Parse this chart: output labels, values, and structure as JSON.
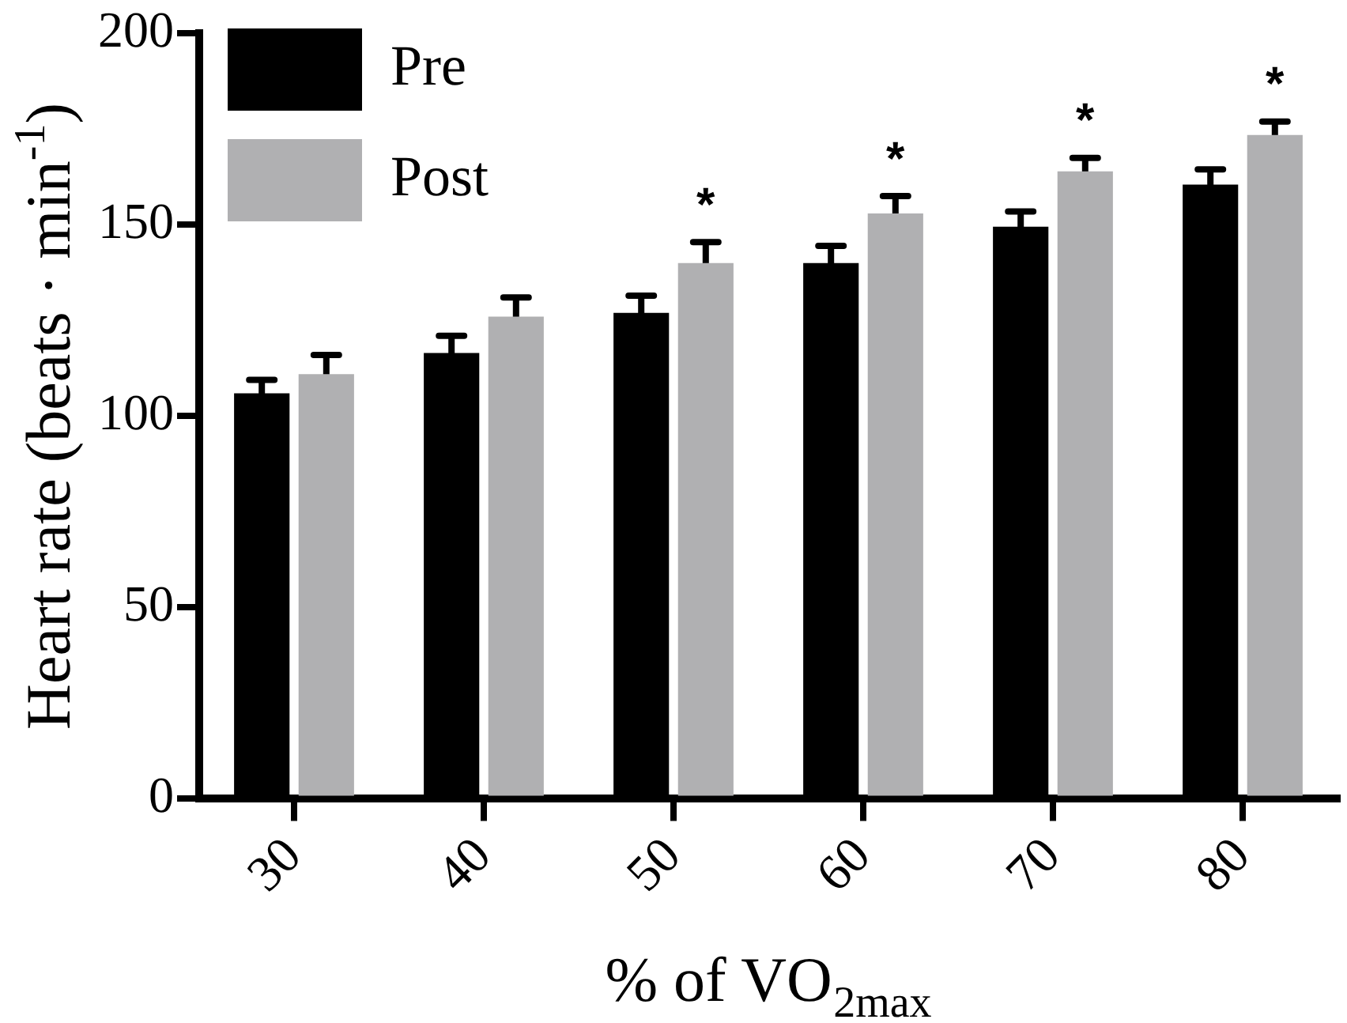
{
  "chart_data": {
    "type": "bar",
    "xlabel": "% of VO$_{2max}$",
    "ylabel": "Heart rate (beats · min$^{-1}$)",
    "categories": [
      "30",
      "40",
      "50",
      "60",
      "70",
      "80"
    ],
    "series": [
      {
        "name": "Pre",
        "color": "#000000",
        "values": [
          106,
          116.5,
          127,
          140,
          149.5,
          160.5
        ],
        "errors": [
          3.5,
          4.5,
          4.5,
          4.5,
          4,
          4
        ]
      },
      {
        "name": "Post",
        "color": "#b0b0b2",
        "values": [
          111,
          126,
          140,
          153,
          164,
          173.5
        ],
        "errors": [
          5,
          5,
          5.5,
          4.5,
          3.5,
          3.5
        ]
      }
    ],
    "ylim": [
      0,
      200
    ],
    "yticks": [
      0,
      50,
      100,
      150,
      200
    ],
    "grid": false,
    "legend": "top left",
    "annotations": [
      {
        "text": "*",
        "x": "50",
        "y": 140
      },
      {
        "text": "*",
        "x": "60",
        "y": 153
      },
      {
        "text": "*",
        "x": "70",
        "y": 164
      },
      {
        "text": "*",
        "x": "80",
        "y": 173.5
      }
    ]
  }
}
